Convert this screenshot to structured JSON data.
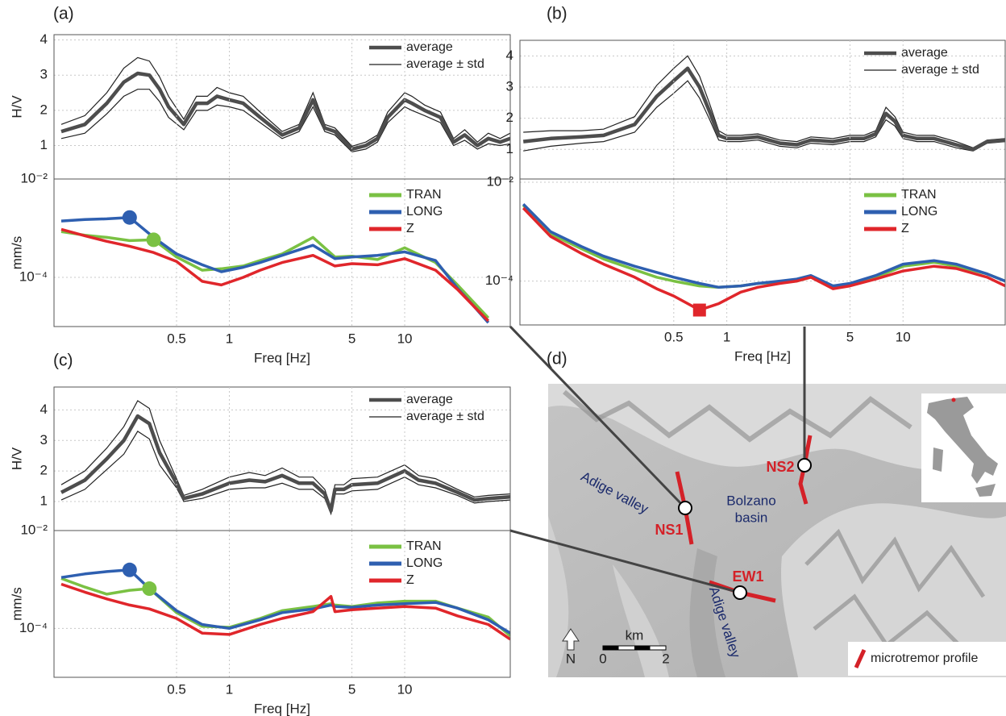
{
  "panel_labels": [
    "(a)",
    "(b)",
    "(c)",
    "(d)"
  ],
  "chart_data": [
    {
      "type": "line",
      "ylabel": "H/V",
      "xscale": "log",
      "xlim": [
        0.1,
        40
      ],
      "ylim": [
        0.05,
        4.15
      ],
      "yticks": [
        1,
        2,
        3,
        4
      ],
      "grid": true,
      "legend": "upper right",
      "x": [
        0.11,
        0.15,
        0.2,
        0.25,
        0.3,
        0.35,
        0.4,
        0.45,
        0.55,
        0.65,
        0.75,
        0.85,
        1,
        1.2,
        1.5,
        2,
        2.5,
        3,
        3.5,
        4,
        5,
        6,
        7,
        8,
        10,
        11,
        13,
        16,
        19,
        22,
        26,
        30,
        35,
        40
      ],
      "series": [
        {
          "name": "average",
          "color": "#4d4d4d",
          "values": [
            1.4,
            1.6,
            2.2,
            2.8,
            3.05,
            3.0,
            2.6,
            2.1,
            1.6,
            2.2,
            2.2,
            2.4,
            2.3,
            2.2,
            1.8,
            1.3,
            1.5,
            2.3,
            1.5,
            1.4,
            0.9,
            1.0,
            1.2,
            1.8,
            2.3,
            2.2,
            2.0,
            1.8,
            1.1,
            1.3,
            1.0,
            1.2,
            1.1,
            1.2
          ]
        }
      ],
      "std": {
        "name": "average ± std",
        "color": "#222222",
        "values": [
          0.2,
          0.25,
          0.3,
          0.4,
          0.45,
          0.4,
          0.35,
          0.3,
          0.15,
          0.2,
          0.2,
          0.25,
          0.2,
          0.2,
          0.15,
          0.1,
          0.1,
          0.2,
          0.1,
          0.1,
          0.08,
          0.1,
          0.1,
          0.15,
          0.2,
          0.2,
          0.15,
          0.15,
          0.1,
          0.15,
          0.1,
          0.15,
          0.1,
          0.15
        ]
      }
    },
    {
      "type": "line",
      "ylabel": "mm/s",
      "xlabel": "Freq [Hz]",
      "xscale": "log",
      "yscale": "log",
      "xlim": [
        0.1,
        40
      ],
      "ylim": [
        1e-05,
        0.01
      ],
      "xticks": [
        0.5,
        1,
        5,
        10
      ],
      "yticks": [
        {
          "value": 0.0001,
          "label": "10⁻⁴"
        },
        {
          "value": 0.01,
          "label": "10⁻²"
        }
      ],
      "grid": true,
      "legend": "upper right",
      "x": [
        0.11,
        0.15,
        0.2,
        0.27,
        0.37,
        0.5,
        0.7,
        0.9,
        1.2,
        1.5,
        2,
        3,
        4,
        5,
        7,
        10,
        15,
        20,
        25,
        30
      ],
      "series": [
        {
          "name": "TRAN",
          "color": "#7ac143",
          "values": [
            0.00085,
            0.00072,
            0.00065,
            0.00056,
            0.00058,
            0.00026,
            0.00014,
            0.00015,
            0.00017,
            0.00022,
            0.0003,
            0.00065,
            0.00026,
            0.00027,
            0.00023,
            0.0004,
            0.0002,
            7e-05,
            3e-05,
            1.5e-05
          ]
        },
        {
          "name": "LONG",
          "color": "#2e5fb0",
          "values": [
            0.0014,
            0.0015,
            0.00155,
            0.00165,
            0.00065,
            0.0003,
            0.00018,
            0.00013,
            0.00016,
            0.0002,
            0.00028,
            0.00045,
            0.00024,
            0.00026,
            0.00028,
            0.00033,
            0.00022,
            6e-05,
            2.5e-05,
            1.2e-05
          ]
        },
        {
          "name": "Z",
          "color": "#e0262b",
          "values": [
            0.00095,
            0.0007,
            0.00054,
            0.00043,
            0.00032,
            0.00021,
            8.3e-05,
            7e-05,
            0.0001,
            0.00014,
            0.0002,
            0.00028,
            0.00017,
            0.00019,
            0.00018,
            0.00024,
            0.00014,
            5.7e-05,
            2.5e-05,
            1.3e-05
          ]
        }
      ],
      "peaks": [
        {
          "x": 0.27,
          "y": 0.00165,
          "color": "#2e5fb0",
          "shape": "circle"
        },
        {
          "x": 0.37,
          "y": 0.00058,
          "color": "#7ac143",
          "shape": "circle"
        }
      ]
    },
    {
      "type": "line",
      "xscale": "log",
      "xlim": [
        0.067,
        38
      ],
      "ylim": [
        0.05,
        4.5
      ],
      "yticks": [
        1,
        2,
        3,
        4
      ],
      "grid": true,
      "legend": "upper right",
      "x": [
        0.07,
        0.1,
        0.15,
        0.2,
        0.3,
        0.4,
        0.5,
        0.6,
        0.7,
        0.8,
        0.9,
        1,
        1.2,
        1.5,
        2,
        2.5,
        3,
        4,
        5,
        6,
        7,
        8,
        9,
        10,
        12,
        15,
        20,
        25,
        30,
        38
      ],
      "series": [
        {
          "name": "average",
          "color": "#4d4d4d",
          "values": [
            1.25,
            1.35,
            1.4,
            1.45,
            1.8,
            2.7,
            3.2,
            3.6,
            3.0,
            2.2,
            1.45,
            1.35,
            1.35,
            1.4,
            1.2,
            1.15,
            1.3,
            1.25,
            1.35,
            1.35,
            1.5,
            2.15,
            1.9,
            1.45,
            1.35,
            1.35,
            1.15,
            1.0,
            1.25,
            1.3
          ]
        }
      ],
      "std": {
        "name": "average ± std",
        "color": "#222222",
        "values": [
          0.3,
          0.25,
          0.2,
          0.2,
          0.25,
          0.35,
          0.4,
          0.4,
          0.35,
          0.25,
          0.15,
          0.1,
          0.1,
          0.1,
          0.1,
          0.1,
          0.1,
          0.1,
          0.1,
          0.1,
          0.1,
          0.2,
          0.15,
          0.1,
          0.1,
          0.1,
          0.1,
          0.05,
          0.05,
          0.05
        ]
      }
    },
    {
      "type": "line",
      "xlabel": "Freq [Hz]",
      "xscale": "log",
      "yscale": "log",
      "xlim": [
        0.067,
        38
      ],
      "ylim": [
        1.3e-05,
        0.0116
      ],
      "xticks": [
        0.5,
        1,
        5,
        10
      ],
      "yticks": [
        {
          "value": 0.0001,
          "label": "10⁻⁴"
        },
        {
          "value": 0.01,
          "label": "10⁻²"
        }
      ],
      "grid": true,
      "legend": "upper right",
      "x": [
        0.07,
        0.1,
        0.15,
        0.2,
        0.3,
        0.4,
        0.5,
        0.7,
        0.9,
        1.2,
        1.5,
        2,
        2.5,
        3,
        4,
        5,
        7,
        10,
        15,
        20,
        30,
        38
      ],
      "series": [
        {
          "name": "TRAN",
          "color": "#7ac143",
          "values": [
            0.0034,
            0.0009,
            0.00045,
            0.00028,
            0.00017,
            0.00012,
            0.0001,
            8e-05,
            7.5e-05,
            8e-05,
            9e-05,
            9.5e-05,
            0.0001,
            0.00012,
            8e-05,
            8.5e-05,
            0.00012,
            0.0002,
            0.00024,
            0.0002,
            0.00014,
            0.0001
          ]
        },
        {
          "name": "LONG",
          "color": "#2e5fb0",
          "values": [
            0.0036,
            0.001,
            0.0005,
            0.00032,
            0.0002,
            0.00015,
            0.00012,
            9e-05,
            7.5e-05,
            8e-05,
            9e-05,
            0.0001,
            0.00011,
            0.00013,
            8e-05,
            9e-05,
            0.00013,
            0.00022,
            0.00026,
            0.00022,
            0.00014,
            0.0001
          ]
        },
        {
          "name": "Z",
          "color": "#e0262b",
          "values": [
            0.003,
            0.0008,
            0.00036,
            0.00022,
            0.00012,
            7e-05,
            5e-05,
            2.6e-05,
            3.5e-05,
            6e-05,
            7.5e-05,
            9e-05,
            0.0001,
            0.00012,
            7e-05,
            8e-05,
            0.00011,
            0.00016,
            0.0002,
            0.00018,
            0.00012,
            8e-05
          ]
        }
      ],
      "peaks": [
        {
          "x": 0.7,
          "y": 2.6e-05,
          "color": "#e0262b",
          "shape": "square"
        }
      ]
    },
    {
      "type": "line",
      "ylabel": "H/V",
      "xscale": "log",
      "xlim": [
        0.1,
        40
      ],
      "ylim": [
        0.05,
        4.75
      ],
      "yticks": [
        1,
        2,
        3,
        4
      ],
      "grid": true,
      "legend": "upper right",
      "x": [
        0.11,
        0.15,
        0.2,
        0.25,
        0.3,
        0.35,
        0.4,
        0.5,
        0.55,
        0.7,
        1,
        1.3,
        1.6,
        2,
        2.5,
        3,
        3.5,
        3.8,
        4,
        4.5,
        5,
        7,
        10,
        12,
        15,
        20,
        25,
        30,
        40
      ],
      "series": [
        {
          "name": "average",
          "color": "#4d4d4d",
          "values": [
            1.3,
            1.7,
            2.4,
            3.0,
            3.8,
            3.55,
            2.6,
            1.6,
            1.1,
            1.25,
            1.6,
            1.7,
            1.65,
            1.85,
            1.6,
            1.6,
            1.25,
            0.7,
            1.4,
            1.4,
            1.55,
            1.6,
            2.0,
            1.7,
            1.6,
            1.3,
            1.05,
            1.1,
            1.15
          ]
        }
      ],
      "std": {
        "name": "average ± std",
        "color": "#222222",
        "values": [
          0.25,
          0.3,
          0.35,
          0.45,
          0.5,
          0.5,
          0.4,
          0.15,
          0.1,
          0.15,
          0.2,
          0.25,
          0.2,
          0.25,
          0.2,
          0.2,
          0.15,
          0.1,
          0.15,
          0.15,
          0.2,
          0.2,
          0.2,
          0.15,
          0.15,
          0.1,
          0.1,
          0.1,
          0.1
        ]
      }
    },
    {
      "type": "line",
      "ylabel": "mm/s",
      "xlabel": "Freq [Hz]",
      "xscale": "log",
      "yscale": "log",
      "xlim": [
        0.1,
        40
      ],
      "ylim": [
        1e-05,
        0.01
      ],
      "xticks": [
        0.5,
        1,
        5,
        10
      ],
      "yticks": [
        {
          "value": 0.0001,
          "label": "10⁻⁴"
        },
        {
          "value": 0.01,
          "label": "10⁻²"
        }
      ],
      "grid": true,
      "legend": "upper right",
      "x": [
        0.11,
        0.15,
        0.2,
        0.27,
        0.35,
        0.5,
        0.7,
        1,
        1.5,
        2,
        3,
        3.8,
        4,
        5,
        7,
        10,
        15,
        20,
        30,
        40
      ],
      "series": [
        {
          "name": "TRAN",
          "color": "#7ac143",
          "values": [
            0.00105,
            0.0007,
            0.0005,
            0.0006,
            0.00065,
            0.00021,
            0.00011,
            0.000105,
            0.00016,
            0.00023,
            0.00028,
            0.00032,
            0.0003,
            0.00028,
            0.00033,
            0.00036,
            0.00036,
            0.00026,
            0.00017,
            7e-05
          ]
        },
        {
          "name": "LONG",
          "color": "#2e5fb0",
          "values": [
            0.0011,
            0.0013,
            0.00145,
            0.00157,
            0.00065,
            0.00023,
            0.00012,
            0.0001,
            0.00015,
            0.00021,
            0.00025,
            0.0003,
            0.00028,
            0.00027,
            0.0003,
            0.00032,
            0.00034,
            0.00026,
            0.00015,
            8e-05
          ]
        },
        {
          "name": "Z",
          "color": "#e0262b",
          "values": [
            0.0008,
            0.00055,
            0.0004,
            0.0003,
            0.00025,
            0.00016,
            8e-05,
            7.5e-05,
            0.00012,
            0.00016,
            0.00022,
            0.00045,
            0.00022,
            0.00024,
            0.00026,
            0.00028,
            0.00026,
            0.00018,
            0.00012,
            6e-05
          ]
        }
      ],
      "peaks": [
        {
          "x": 0.27,
          "y": 0.00157,
          "color": "#2e5fb0",
          "shape": "circle"
        },
        {
          "x": 0.35,
          "y": 0.00065,
          "color": "#7ac143",
          "shape": "circle"
        }
      ]
    }
  ],
  "map": {
    "valley_labels": [
      "Adige valley",
      "Bolzano",
      "basin",
      "Adige valley"
    ],
    "profiles": [
      "NS1",
      "NS2",
      "EW1"
    ],
    "scale_unit": "km",
    "scale_ticks": [
      0,
      2
    ],
    "north": "N",
    "legend": "microtremor profile"
  }
}
